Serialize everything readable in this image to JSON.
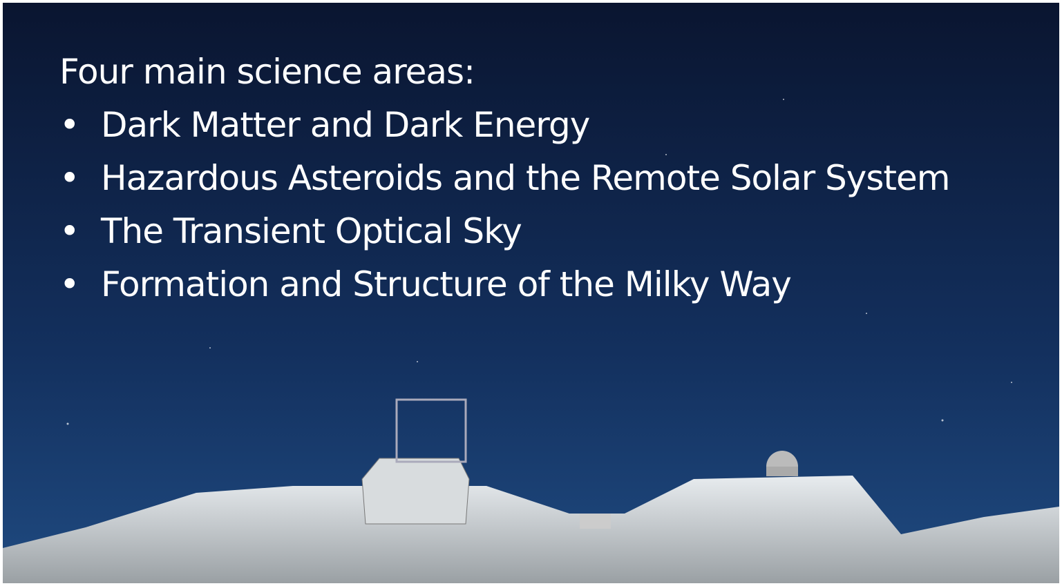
{
  "heading": "Four main science areas:",
  "bullets": [
    "Dark Matter and Dark Energy",
    "Hazardous Asteroids and the Remote Solar System",
    "The Transient Optical Sky",
    "Formation and Structure of the Milky Way"
  ]
}
